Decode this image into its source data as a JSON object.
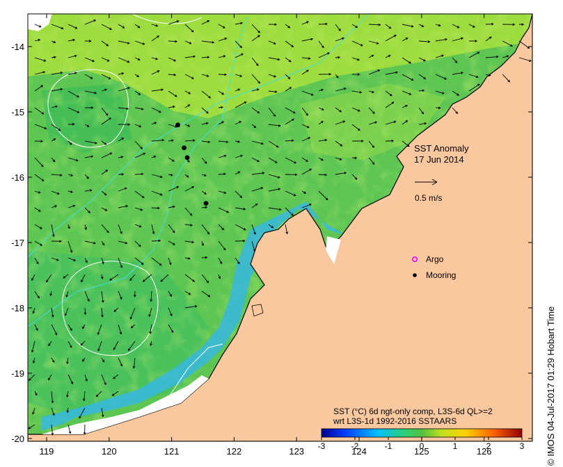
{
  "map": {
    "title": "SST Anomaly",
    "date": "17 Jun 2014",
    "credit": "© IMOS 04-Jul-2017 01:29 Hobart Time",
    "x_ticks": [
      "119",
      "120",
      "121",
      "122",
      "123",
      "124",
      "125",
      "126"
    ],
    "y_ticks": [
      "-14",
      "-15",
      "-16",
      "-17",
      "-18",
      "-19",
      "-20"
    ],
    "vector_scale_label": "0.5 m/s",
    "legend": {
      "argo_label": "Argo",
      "mooring_label": "Mooring",
      "argo_color": "#ff00ff",
      "mooring_color": "#000000"
    },
    "colorbar": {
      "caption_line1": "SST (°C) 6d ngt-only comp, L3S-6d QL>=2",
      "caption_line2": "wrt L3S-1d 1992-2016 SSTAARS",
      "ticks": [
        "-3",
        "-2",
        "-1",
        "0",
        "1",
        "2",
        "3"
      ]
    },
    "colors": {
      "land": "#f9c89f",
      "ocean_base": "#5dc653",
      "ocean_warm": "#b9e43a",
      "ocean_cool": "#2fc07a",
      "coastal_cool": "#35b6e8",
      "altimetry_contour_cyan": "#40e0e0",
      "altimetry_contour_white": "#ffffff"
    },
    "moorings": [
      {
        "lon": 121.1,
        "lat": -15.2
      },
      {
        "lon": 121.2,
        "lat": -15.55
      },
      {
        "lon": 121.25,
        "lat": -15.7
      },
      {
        "lon": 121.55,
        "lat": -16.4
      }
    ]
  }
}
